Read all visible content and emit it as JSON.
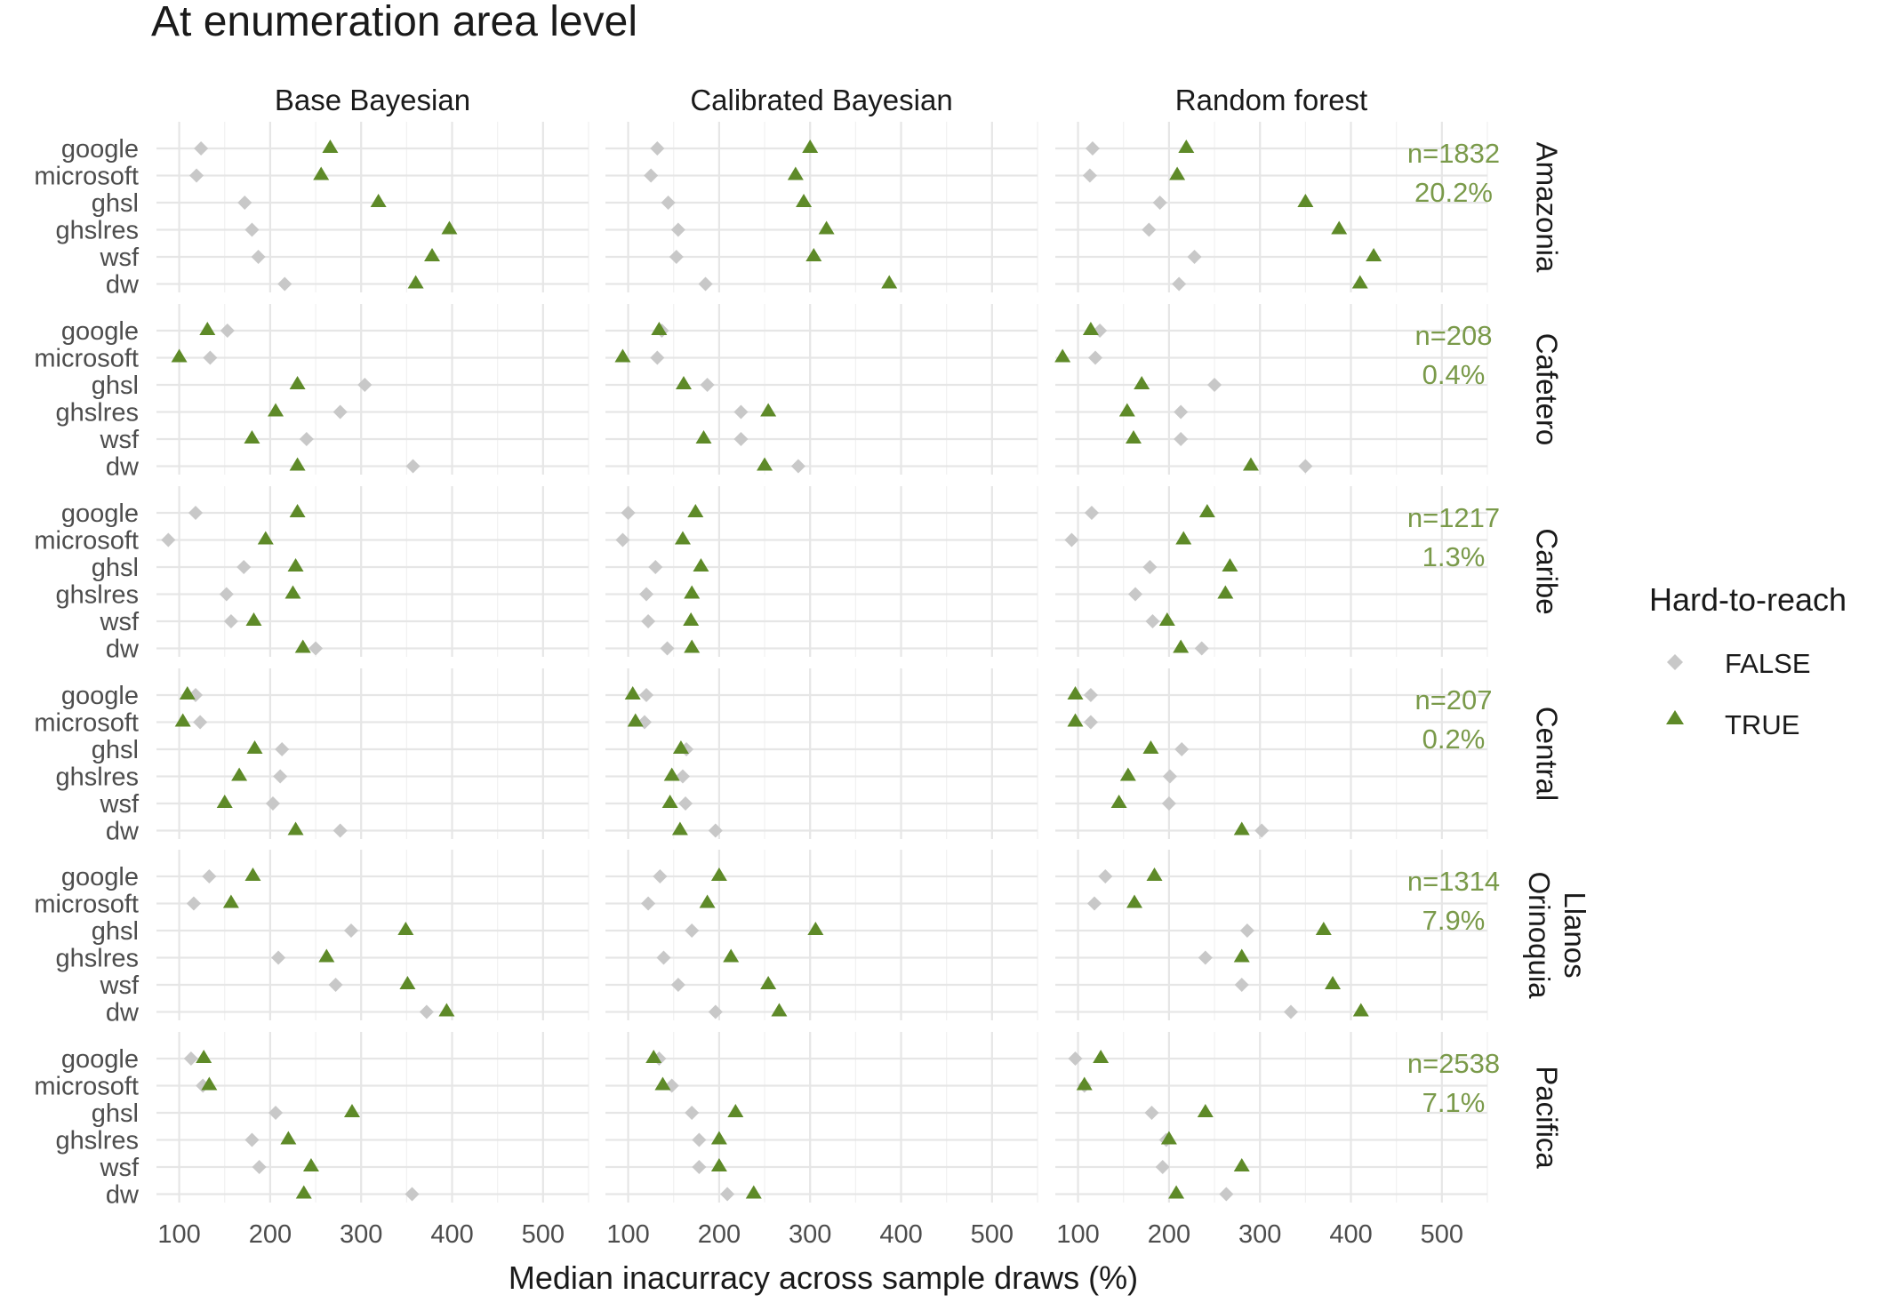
{
  "chart_data": {
    "type": "scatter",
    "title": "At enumeration area level",
    "xlabel": "Median inacurracy across sample draws (%)",
    "xticks": [
      100,
      200,
      300,
      400,
      500
    ],
    "xlim": [
      75,
      550
    ],
    "grid": true,
    "legend": {
      "title": "Hard-to-reach",
      "position": "right",
      "entries": [
        {
          "label": "FALSE",
          "shape": "diamond",
          "color": "#c8c8c8"
        },
        {
          "label": "TRUE",
          "shape": "triangle",
          "color": "#5e8a28"
        }
      ]
    },
    "categories": [
      "google",
      "microsoft",
      "ghsl",
      "ghslres",
      "wsf",
      "dw"
    ],
    "columns": [
      "Base Bayesian",
      "Calibrated Bayesian",
      "Random forest"
    ],
    "rows": [
      {
        "region": [
          "Amazonia"
        ],
        "n": "n=1832",
        "pct": "20.2%",
        "data": {
          "Base Bayesian": {
            "FALSE": [
              124,
              119,
              172,
              180,
              187,
              216
            ],
            "TRUE": [
              266,
              256,
              319,
              397,
              378,
              360
            ]
          },
          "Calibrated Bayesian": {
            "FALSE": [
              132,
              125,
              144,
              155,
              153,
              185
            ],
            "TRUE": [
              300,
              284,
              293,
              318,
              304,
              387
            ]
          },
          "Random forest": {
            "FALSE": [
              116,
              113,
              190,
              178,
              228,
              211
            ],
            "TRUE": [
              219,
              209,
              350,
              387,
              425,
              410
            ]
          }
        }
      },
      {
        "region": [
          "Cafetero"
        ],
        "n": "n=208",
        "pct": "0.4%",
        "data": {
          "Base Bayesian": {
            "FALSE": [
              153,
              134,
              304,
              277,
              240,
              357
            ],
            "TRUE": [
              131,
              100,
              230,
              206,
              180,
              230
            ]
          },
          "Calibrated Bayesian": {
            "FALSE": [
              137,
              132,
              187,
              224,
              224,
              287
            ],
            "TRUE": [
              134,
              94,
              161,
              254,
              183,
              250
            ]
          },
          "Random forest": {
            "FALSE": [
              124,
              119,
              250,
              213,
              213,
              350
            ],
            "TRUE": [
              114,
              83,
              170,
              154,
              161,
              290
            ]
          }
        }
      },
      {
        "region": [
          "Caribe"
        ],
        "n": "n=1217",
        "pct": "1.3%",
        "data": {
          "Base Bayesian": {
            "FALSE": [
              118,
              88,
              171,
              152,
              157,
              250
            ],
            "TRUE": [
              230,
              195,
              228,
              225,
              182,
              236
            ]
          },
          "Calibrated Bayesian": {
            "FALSE": [
              100,
              94,
              130,
              120,
              122,
              143
            ],
            "TRUE": [
              174,
              160,
              180,
              170,
              169,
              170
            ]
          },
          "Random forest": {
            "FALSE": [
              115,
              93,
              179,
              163,
              182,
              236
            ],
            "TRUE": [
              242,
              216,
              267,
              262,
              198,
              213
            ]
          }
        }
      },
      {
        "region": [
          "Central"
        ],
        "n": "n=207",
        "pct": "0.2%",
        "data": {
          "Base Bayesian": {
            "FALSE": [
              118,
              123,
              213,
              211,
              203,
              277
            ],
            "TRUE": [
              109,
              104,
              183,
              166,
              150,
              228
            ]
          },
          "Calibrated Bayesian": {
            "FALSE": [
              120,
              118,
              164,
              160,
              163,
              196
            ],
            "TRUE": [
              105,
              108,
              158,
              148,
              146,
              157
            ]
          },
          "Random forest": {
            "FALSE": [
              114,
              114,
              214,
              201,
              200,
              302
            ],
            "TRUE": [
              97,
              97,
              180,
              155,
              145,
              280
            ]
          }
        }
      },
      {
        "region": [
          "Llanos",
          "Orinoquia"
        ],
        "n": "n=1314",
        "pct": "7.9%",
        "data": {
          "Base Bayesian": {
            "FALSE": [
              133,
              116,
              289,
              209,
              272,
              372
            ],
            "TRUE": [
              181,
              157,
              349,
              262,
              351,
              394
            ]
          },
          "Calibrated Bayesian": {
            "FALSE": [
              135,
              122,
              170,
              139,
              155,
              196
            ],
            "TRUE": [
              200,
              187,
              306,
              213,
              254,
              266
            ]
          },
          "Random forest": {
            "FALSE": [
              130,
              118,
              286,
              240,
              280,
              334
            ],
            "TRUE": [
              184,
              162,
              370,
              280,
              380,
              411
            ]
          }
        }
      },
      {
        "region": [
          "Pacifica"
        ],
        "n": "n=2538",
        "pct": "7.1%",
        "data": {
          "Base Bayesian": {
            "FALSE": [
              113,
              126,
              206,
              180,
              188,
              356
            ],
            "TRUE": [
              127,
              133,
              290,
              220,
              245,
              237
            ]
          },
          "Calibrated Bayesian": {
            "FALSE": [
              134,
              148,
              170,
              178,
              178,
              209
            ],
            "TRUE": [
              128,
              138,
              218,
              200,
              200,
              238
            ]
          },
          "Random forest": {
            "FALSE": [
              97,
              107,
              181,
              197,
              193,
              263
            ],
            "TRUE": [
              125,
              107,
              240,
              200,
              280,
              208
            ]
          }
        }
      }
    ]
  }
}
